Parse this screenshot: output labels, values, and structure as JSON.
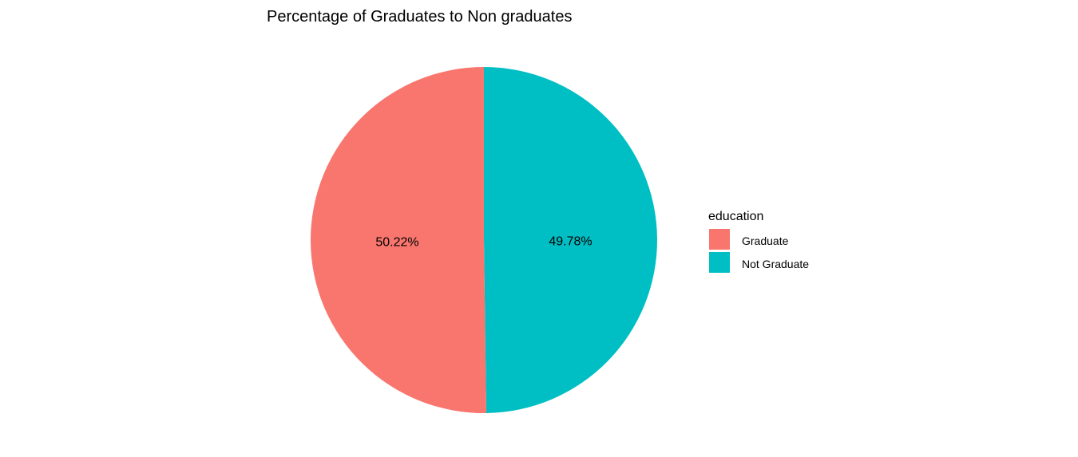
{
  "chart_data": {
    "type": "pie",
    "title": "Percentage of Graduates to Non graduates",
    "legend_title": "education",
    "legend_position": "right",
    "slices": [
      {
        "label": "Graduate",
        "value": 50.22,
        "display": "50.22%",
        "color": "#F8766D"
      },
      {
        "label": "Not Graduate",
        "value": 49.78,
        "display": "49.78%",
        "color": "#00BFC4"
      }
    ]
  }
}
